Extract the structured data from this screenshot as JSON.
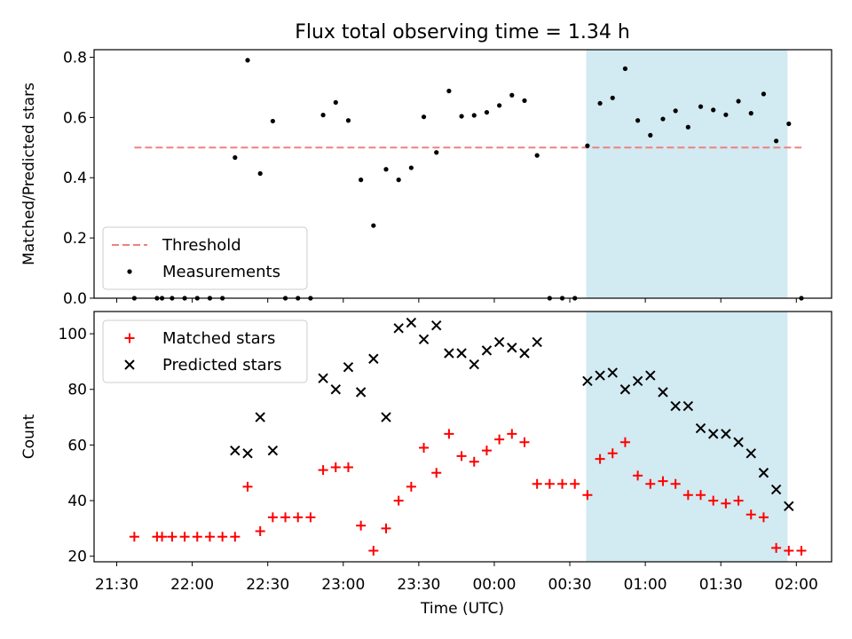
{
  "chart_data": {
    "title": "Flux total observing time = 1.34 h",
    "xlabel": "Time (UTC)",
    "x_unit": "minutes after 21:30 UTC",
    "x_ticks": [
      {
        "value": 0,
        "label": "21:30"
      },
      {
        "value": 30,
        "label": "22:00"
      },
      {
        "value": 60,
        "label": "22:30"
      },
      {
        "value": 90,
        "label": "23:00"
      },
      {
        "value": 120,
        "label": "23:30"
      },
      {
        "value": 150,
        "label": "00:00"
      },
      {
        "value": 180,
        "label": "00:30"
      },
      {
        "value": 210,
        "label": "01:00"
      },
      {
        "value": 240,
        "label": "01:30"
      },
      {
        "value": 270,
        "label": "02:00"
      }
    ],
    "xlim": [
      -9,
      284
    ],
    "highlight": {
      "x0": 186.5,
      "x1": 266.5,
      "color": "#add8e6"
    },
    "panels": [
      {
        "type": "scatter",
        "ylabel": "Matched/Predicted stars",
        "ylim": [
          0,
          0.825
        ],
        "y_ticks": [
          "0.0",
          "0.2",
          "0.4",
          "0.6",
          "0.8"
        ],
        "legend": {
          "placement": "lower-left",
          "entries": [
            "Threshold",
            "Measurements"
          ]
        },
        "threshold": {
          "name": "Threshold",
          "value": 0.5,
          "x0": 7,
          "x1": 272,
          "color": "#f08080",
          "style": "dashed"
        },
        "series": [
          {
            "name": "Measurements",
            "color": "#000000",
            "marker": "dot",
            "x": [
              7,
              16,
              18,
              22,
              27,
              32,
              37,
              42,
              47,
              52,
              57,
              62,
              67,
              72,
              77,
              82,
              87,
              92,
              97,
              102,
              107,
              112,
              117,
              122,
              127,
              132,
              137,
              142,
              147,
              152,
              157,
              162,
              167,
              172,
              177,
              182,
              187,
              192,
              197,
              202,
              207,
              212,
              217,
              222,
              227,
              232,
              237,
              242,
              247,
              252,
              257,
              262,
              267,
              272
            ],
            "y": [
              0,
              0,
              0,
              0,
              0,
              0,
              0,
              0,
              0.467,
              0.79,
              0.414,
              0.588,
              0,
              0,
              0,
              0.608,
              0.65,
              0.59,
              0.393,
              0.241,
              0.428,
              0.393,
              0.433,
              0.602,
              0.484,
              0.688,
              0.604,
              0.607,
              0.617,
              0.64,
              0.674,
              0.656,
              0.474,
              0,
              0,
              0,
              0.506,
              0.647,
              0.665,
              0.762,
              0.59,
              0.541,
              0.595,
              0.622,
              0.568,
              0.636,
              0.625,
              0.609,
              0.654,
              0.614,
              0.678,
              0.522,
              0.579,
              0
            ]
          }
        ]
      },
      {
        "type": "scatter",
        "ylabel": "Count",
        "ylim": [
          18,
          108
        ],
        "y_ticks": [
          "20",
          "40",
          "60",
          "80",
          "100"
        ],
        "legend": {
          "placement": "upper-left",
          "entries": [
            "Matched stars",
            "Predicted stars"
          ]
        },
        "series": [
          {
            "name": "Matched stars",
            "color": "#ff0000",
            "marker": "plus",
            "x": [
              7,
              16,
              18,
              22,
              27,
              32,
              37,
              42,
              47,
              52,
              57,
              62,
              67,
              72,
              77,
              82,
              87,
              92,
              97,
              102,
              107,
              112,
              117,
              122,
              127,
              132,
              137,
              142,
              147,
              152,
              157,
              162,
              167,
              172,
              177,
              182,
              187,
              192,
              197,
              202,
              207,
              212,
              217,
              222,
              227,
              232,
              237,
              242,
              247,
              252,
              257,
              262,
              267,
              272
            ],
            "y": [
              27,
              27,
              27,
              27,
              27,
              27,
              27,
              27,
              27,
              45,
              29,
              34,
              34,
              34,
              34,
              51,
              52,
              52,
              31,
              22,
              30,
              40,
              45,
              59,
              50,
              64,
              56,
              54,
              58,
              62,
              64,
              61,
              46,
              46,
              46,
              46,
              42,
              55,
              57,
              61,
              49,
              46,
              47,
              46,
              42,
              42,
              40,
              39,
              40,
              35,
              34,
              23,
              22,
              22
            ]
          },
          {
            "name": "Predicted stars",
            "color": "#000000",
            "marker": "x",
            "x": [
              47,
              52,
              57,
              62,
              82,
              87,
              92,
              97,
              102,
              107,
              112,
              117,
              122,
              127,
              132,
              137,
              142,
              147,
              152,
              157,
              162,
              167,
              187,
              192,
              197,
              202,
              207,
              212,
              217,
              222,
              227,
              232,
              237,
              242,
              247,
              252,
              257,
              262,
              267
            ],
            "y": [
              58,
              57,
              70,
              58,
              84,
              80,
              88,
              79,
              91,
              70,
              102,
              104,
              98,
              103,
              93,
              93,
              89,
              94,
              97,
              95,
              93,
              97,
              83,
              85,
              86,
              80,
              83,
              85,
              79,
              74,
              74,
              66,
              64,
              64,
              61,
              57,
              50,
              44,
              38
            ]
          }
        ]
      }
    ]
  }
}
